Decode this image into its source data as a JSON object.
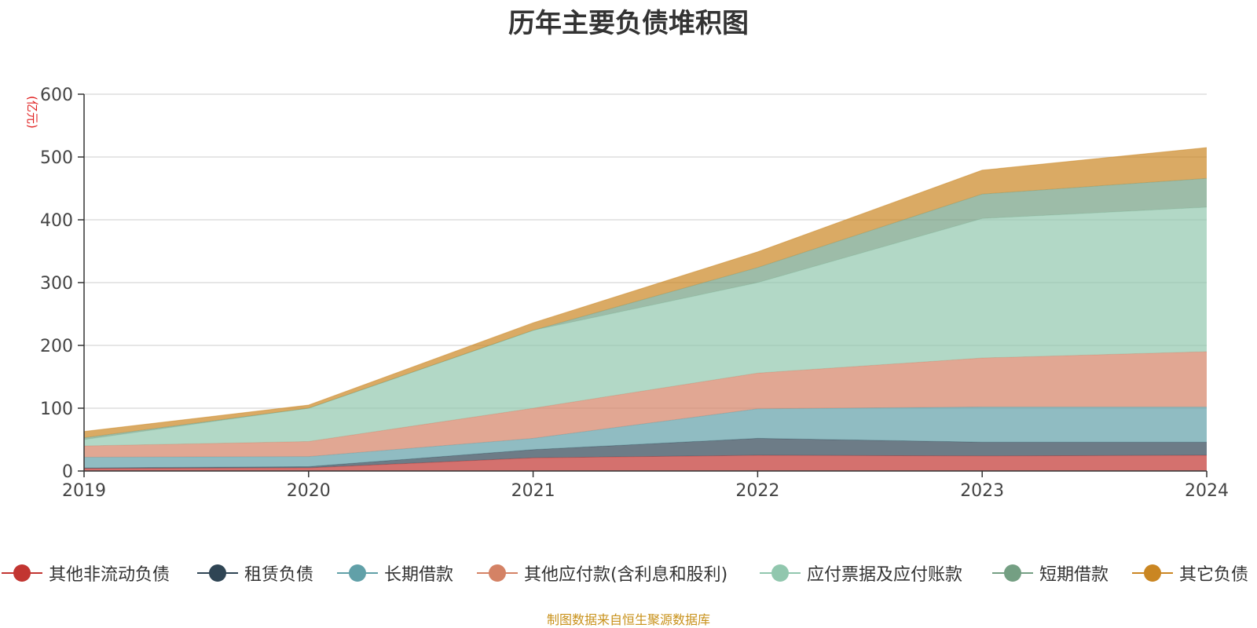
{
  "chart_data": {
    "type": "area",
    "stacked": true,
    "title": "历年主要负债堆积图",
    "unit_label": "(亿元)",
    "x": [
      "2019",
      "2020",
      "2021",
      "2022",
      "2023",
      "2024"
    ],
    "ylim": [
      0,
      600
    ],
    "yticks": [
      "0",
      "100",
      "200",
      "300",
      "400",
      "500",
      "600"
    ],
    "grid": true,
    "legend_position": "bottom",
    "series": [
      {
        "name": "其他非流动负债",
        "color": "#c23531",
        "values": [
          4,
          5,
          21,
          25,
          24,
          25
        ]
      },
      {
        "name": "租赁负债",
        "color": "#2f4554",
        "values": [
          1,
          2,
          13,
          27,
          22,
          21
        ]
      },
      {
        "name": "长期借款",
        "color": "#61a0a8",
        "values": [
          17,
          16,
          18,
          47,
          56,
          56
        ]
      },
      {
        "name": "其他应付款(含利息和股利)",
        "color": "#d48265",
        "values": [
          18,
          24,
          48,
          57,
          78,
          88
        ]
      },
      {
        "name": "应付票据及应付账款",
        "color": "#91c7ae",
        "values": [
          10,
          53,
          124,
          144,
          222,
          230
        ]
      },
      {
        "name": "短期借款",
        "color": "#749f83",
        "values": [
          3,
          0,
          0,
          24,
          39,
          46
        ]
      },
      {
        "name": "其它负债",
        "color": "#ca8622",
        "values": [
          10,
          5,
          12,
          25,
          38,
          49
        ]
      }
    ],
    "source": "制图数据来自恒生聚源数据库"
  }
}
